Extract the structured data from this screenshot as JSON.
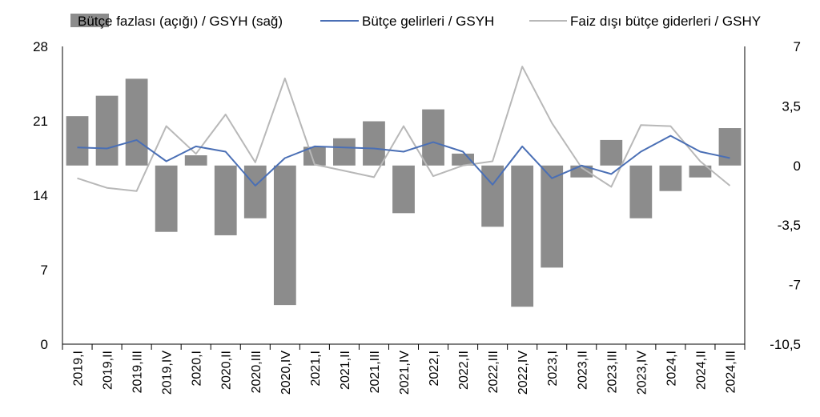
{
  "chart_data": {
    "type": "bar",
    "categories": [
      "2019,I",
      "2019,II",
      "2019,III",
      "2019,IV",
      "2020,I",
      "2020,II",
      "2020,III",
      "2020,IV",
      "2021,I",
      "2021,II",
      "2021,III",
      "2021,IV",
      "2022,I",
      "2022,II",
      "2022,III",
      "2022,IV",
      "2023,I",
      "2023,II",
      "2023,III",
      "2023,IV",
      "2024,I",
      "2024,II",
      "2024,III"
    ],
    "series": [
      {
        "name": "Bütçe fazlası (açığı) / GSYH (sağ)",
        "type": "bar",
        "axis": "right",
        "color": "#8c8c8c",
        "values": [
          2.9,
          4.1,
          5.1,
          -3.9,
          0.6,
          -4.1,
          -3.1,
          -8.2,
          1.1,
          1.6,
          2.6,
          -2.8,
          3.3,
          0.7,
          -3.6,
          -8.3,
          -6.0,
          -0.7,
          1.5,
          -3.1,
          -1.5,
          -0.7,
          2.2
        ]
      },
      {
        "name": "Bütçe gelirleri / GSYH",
        "type": "line",
        "axis": "left",
        "color": "#4a6fb5",
        "values": [
          18.5,
          18.4,
          19.2,
          17.2,
          18.6,
          18.1,
          14.9,
          17.5,
          18.6,
          18.5,
          18.4,
          18.1,
          19.0,
          18.1,
          15.0,
          18.6,
          15.6,
          16.8,
          16.0,
          18.1,
          19.6,
          18.1,
          17.5
        ]
      },
      {
        "name": "Faiz dışı bütçe giderleri / GSHY",
        "type": "line",
        "axis": "left",
        "color": "#b8b8b8",
        "values": [
          15.6,
          14.7,
          14.4,
          20.5,
          17.9,
          21.6,
          17.1,
          25.0,
          16.9,
          16.3,
          15.7,
          20.5,
          15.8,
          16.8,
          17.2,
          26.1,
          20.8,
          16.6,
          14.8,
          20.6,
          20.5,
          17.2,
          14.9
        ]
      }
    ],
    "y_left": {
      "ticks": [
        "28",
        "21",
        "14",
        "7",
        "0"
      ],
      "ylim": [
        0,
        28
      ]
    },
    "y_right": {
      "ticks": [
        "7",
        "3,5",
        "0",
        "-3,5",
        "-7",
        "-10,5"
      ],
      "ylim": [
        -10.5,
        7
      ]
    },
    "legend_position": "top",
    "grid": false
  }
}
